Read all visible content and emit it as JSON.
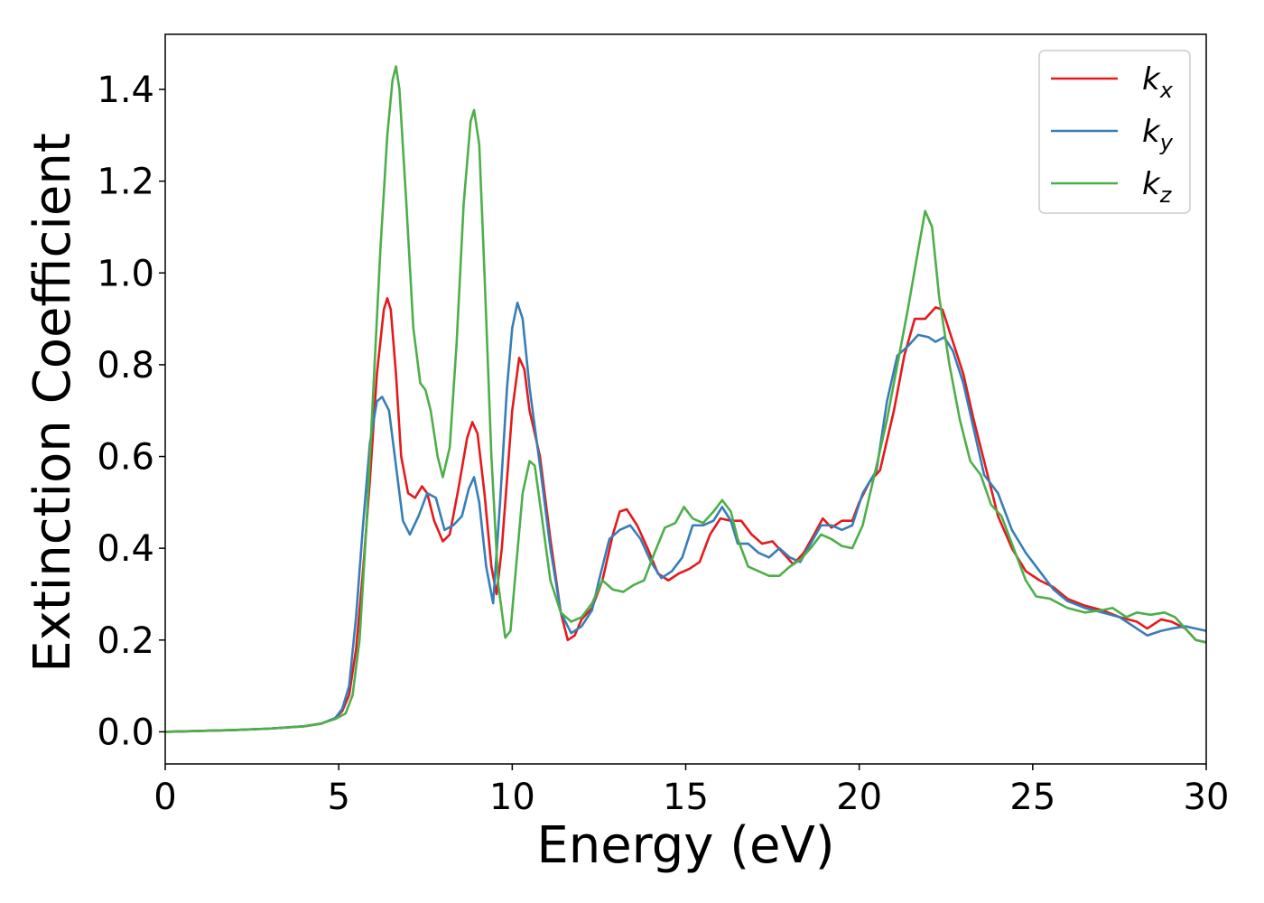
{
  "chart_data": {
    "type": "line",
    "xlabel": "Energy (eV)",
    "ylabel": "Extinction Coefficient",
    "xlim": [
      0,
      30
    ],
    "ylim": [
      -0.07,
      1.52
    ],
    "xticks": [
      0,
      5,
      10,
      15,
      20,
      25,
      30
    ],
    "yticks": [
      0.0,
      0.2,
      0.4,
      0.6,
      0.8,
      1.0,
      1.2,
      1.4
    ],
    "xtick_labels": [
      "0",
      "5",
      "10",
      "15",
      "20",
      "25",
      "30"
    ],
    "ytick_labels": [
      "0.0",
      "0.2",
      "0.4",
      "0.6",
      "0.8",
      "1.0",
      "1.2",
      "1.4"
    ],
    "grid": false,
    "legend_position": "top-right",
    "series": [
      {
        "name": "kx",
        "label_base": "k",
        "label_sub": "x",
        "color": "#e41a1c",
        "points": [
          [
            0,
            0.0
          ],
          [
            2,
            0.004
          ],
          [
            3,
            0.007
          ],
          [
            4,
            0.012
          ],
          [
            4.5,
            0.018
          ],
          [
            4.9,
            0.03
          ],
          [
            5.1,
            0.045
          ],
          [
            5.3,
            0.08
          ],
          [
            5.5,
            0.18
          ],
          [
            5.7,
            0.35
          ],
          [
            5.9,
            0.55
          ],
          [
            6.1,
            0.78
          ],
          [
            6.3,
            0.92
          ],
          [
            6.4,
            0.945
          ],
          [
            6.5,
            0.92
          ],
          [
            6.65,
            0.78
          ],
          [
            6.8,
            0.6
          ],
          [
            7.0,
            0.52
          ],
          [
            7.2,
            0.51
          ],
          [
            7.4,
            0.535
          ],
          [
            7.55,
            0.52
          ],
          [
            7.75,
            0.46
          ],
          [
            8.0,
            0.415
          ],
          [
            8.2,
            0.43
          ],
          [
            8.45,
            0.53
          ],
          [
            8.7,
            0.64
          ],
          [
            8.85,
            0.675
          ],
          [
            9.0,
            0.65
          ],
          [
            9.2,
            0.52
          ],
          [
            9.4,
            0.36
          ],
          [
            9.55,
            0.3
          ],
          [
            9.7,
            0.4
          ],
          [
            9.85,
            0.55
          ],
          [
            10.0,
            0.7
          ],
          [
            10.2,
            0.815
          ],
          [
            10.35,
            0.79
          ],
          [
            10.5,
            0.7
          ],
          [
            10.8,
            0.6
          ],
          [
            11.1,
            0.42
          ],
          [
            11.4,
            0.26
          ],
          [
            11.6,
            0.2
          ],
          [
            11.8,
            0.21
          ],
          [
            12.0,
            0.245
          ],
          [
            12.3,
            0.27
          ],
          [
            12.6,
            0.33
          ],
          [
            12.9,
            0.43
          ],
          [
            13.1,
            0.48
          ],
          [
            13.3,
            0.485
          ],
          [
            13.6,
            0.45
          ],
          [
            13.9,
            0.4
          ],
          [
            14.2,
            0.345
          ],
          [
            14.5,
            0.33
          ],
          [
            14.8,
            0.345
          ],
          [
            15.1,
            0.355
          ],
          [
            15.4,
            0.37
          ],
          [
            15.7,
            0.43
          ],
          [
            16.0,
            0.465
          ],
          [
            16.3,
            0.46
          ],
          [
            16.6,
            0.46
          ],
          [
            16.9,
            0.43
          ],
          [
            17.2,
            0.41
          ],
          [
            17.5,
            0.415
          ],
          [
            17.8,
            0.39
          ],
          [
            18.1,
            0.365
          ],
          [
            18.4,
            0.39
          ],
          [
            18.7,
            0.43
          ],
          [
            18.95,
            0.465
          ],
          [
            19.2,
            0.445
          ],
          [
            19.5,
            0.46
          ],
          [
            19.8,
            0.46
          ],
          [
            20.0,
            0.5
          ],
          [
            20.3,
            0.545
          ],
          [
            20.6,
            0.57
          ],
          [
            21.0,
            0.7
          ],
          [
            21.3,
            0.82
          ],
          [
            21.6,
            0.9
          ],
          [
            21.9,
            0.9
          ],
          [
            22.2,
            0.925
          ],
          [
            22.4,
            0.92
          ],
          [
            22.7,
            0.85
          ],
          [
            23.0,
            0.78
          ],
          [
            23.3,
            0.68
          ],
          [
            23.7,
            0.56
          ],
          [
            24.0,
            0.47
          ],
          [
            24.4,
            0.4
          ],
          [
            24.8,
            0.35
          ],
          [
            25.2,
            0.33
          ],
          [
            25.6,
            0.315
          ],
          [
            26.0,
            0.29
          ],
          [
            26.5,
            0.275
          ],
          [
            27.0,
            0.265
          ],
          [
            27.5,
            0.25
          ],
          [
            28.0,
            0.24
          ],
          [
            28.3,
            0.225
          ],
          [
            28.7,
            0.245
          ],
          [
            29.0,
            0.24
          ],
          [
            29.4,
            0.225
          ],
          [
            29.7,
            0.2
          ],
          [
            30.0,
            0.195
          ]
        ]
      },
      {
        "name": "ky",
        "label_base": "k",
        "label_sub": "y",
        "color": "#377eb8",
        "points": [
          [
            0,
            0.0
          ],
          [
            2,
            0.004
          ],
          [
            3,
            0.007
          ],
          [
            4,
            0.012
          ],
          [
            4.5,
            0.018
          ],
          [
            4.9,
            0.03
          ],
          [
            5.1,
            0.05
          ],
          [
            5.3,
            0.1
          ],
          [
            5.5,
            0.25
          ],
          [
            5.7,
            0.45
          ],
          [
            5.9,
            0.63
          ],
          [
            6.1,
            0.72
          ],
          [
            6.25,
            0.73
          ],
          [
            6.45,
            0.7
          ],
          [
            6.65,
            0.58
          ],
          [
            6.85,
            0.46
          ],
          [
            7.05,
            0.43
          ],
          [
            7.3,
            0.47
          ],
          [
            7.55,
            0.52
          ],
          [
            7.8,
            0.51
          ],
          [
            8.05,
            0.44
          ],
          [
            8.3,
            0.45
          ],
          [
            8.55,
            0.47
          ],
          [
            8.75,
            0.53
          ],
          [
            8.9,
            0.555
          ],
          [
            9.05,
            0.5
          ],
          [
            9.25,
            0.36
          ],
          [
            9.45,
            0.28
          ],
          [
            9.65,
            0.5
          ],
          [
            9.85,
            0.75
          ],
          [
            10.0,
            0.88
          ],
          [
            10.15,
            0.935
          ],
          [
            10.3,
            0.9
          ],
          [
            10.5,
            0.75
          ],
          [
            10.8,
            0.58
          ],
          [
            11.1,
            0.4
          ],
          [
            11.4,
            0.26
          ],
          [
            11.7,
            0.215
          ],
          [
            12.0,
            0.23
          ],
          [
            12.3,
            0.265
          ],
          [
            12.5,
            0.33
          ],
          [
            12.8,
            0.42
          ],
          [
            13.1,
            0.44
          ],
          [
            13.4,
            0.45
          ],
          [
            13.7,
            0.42
          ],
          [
            14.0,
            0.37
          ],
          [
            14.3,
            0.335
          ],
          [
            14.6,
            0.35
          ],
          [
            14.9,
            0.38
          ],
          [
            15.2,
            0.45
          ],
          [
            15.5,
            0.45
          ],
          [
            15.8,
            0.46
          ],
          [
            16.05,
            0.49
          ],
          [
            16.3,
            0.46
          ],
          [
            16.5,
            0.41
          ],
          [
            16.8,
            0.41
          ],
          [
            17.1,
            0.39
          ],
          [
            17.4,
            0.38
          ],
          [
            17.7,
            0.4
          ],
          [
            18.0,
            0.38
          ],
          [
            18.3,
            0.37
          ],
          [
            18.6,
            0.41
          ],
          [
            18.9,
            0.45
          ],
          [
            19.2,
            0.45
          ],
          [
            19.5,
            0.44
          ],
          [
            19.8,
            0.45
          ],
          [
            20.1,
            0.52
          ],
          [
            20.5,
            0.57
          ],
          [
            20.8,
            0.72
          ],
          [
            21.1,
            0.82
          ],
          [
            21.4,
            0.84
          ],
          [
            21.7,
            0.865
          ],
          [
            22.0,
            0.86
          ],
          [
            22.2,
            0.85
          ],
          [
            22.45,
            0.86
          ],
          [
            22.7,
            0.83
          ],
          [
            23.0,
            0.76
          ],
          [
            23.3,
            0.66
          ],
          [
            23.6,
            0.56
          ],
          [
            24.0,
            0.52
          ],
          [
            24.4,
            0.44
          ],
          [
            24.8,
            0.39
          ],
          [
            25.2,
            0.35
          ],
          [
            25.6,
            0.31
          ],
          [
            26.0,
            0.285
          ],
          [
            26.5,
            0.27
          ],
          [
            27.0,
            0.26
          ],
          [
            27.5,
            0.25
          ],
          [
            28.0,
            0.225
          ],
          [
            28.3,
            0.21
          ],
          [
            28.7,
            0.22
          ],
          [
            29.0,
            0.225
          ],
          [
            29.4,
            0.23
          ],
          [
            29.7,
            0.225
          ],
          [
            30.0,
            0.22
          ]
        ]
      },
      {
        "name": "kz",
        "label_base": "k",
        "label_sub": "z",
        "color": "#4daf4a",
        "points": [
          [
            0,
            0.0
          ],
          [
            2,
            0.004
          ],
          [
            3,
            0.007
          ],
          [
            4,
            0.012
          ],
          [
            4.5,
            0.018
          ],
          [
            4.9,
            0.028
          ],
          [
            5.2,
            0.04
          ],
          [
            5.4,
            0.08
          ],
          [
            5.6,
            0.2
          ],
          [
            5.8,
            0.45
          ],
          [
            6.0,
            0.75
          ],
          [
            6.2,
            1.05
          ],
          [
            6.4,
            1.3
          ],
          [
            6.55,
            1.42
          ],
          [
            6.65,
            1.45
          ],
          [
            6.75,
            1.4
          ],
          [
            6.95,
            1.15
          ],
          [
            7.15,
            0.88
          ],
          [
            7.35,
            0.76
          ],
          [
            7.5,
            0.745
          ],
          [
            7.65,
            0.7
          ],
          [
            7.85,
            0.6
          ],
          [
            8.0,
            0.555
          ],
          [
            8.2,
            0.62
          ],
          [
            8.4,
            0.85
          ],
          [
            8.6,
            1.15
          ],
          [
            8.8,
            1.33
          ],
          [
            8.9,
            1.355
          ],
          [
            9.05,
            1.28
          ],
          [
            9.2,
            1.0
          ],
          [
            9.4,
            0.6
          ],
          [
            9.6,
            0.32
          ],
          [
            9.8,
            0.205
          ],
          [
            9.95,
            0.22
          ],
          [
            10.1,
            0.35
          ],
          [
            10.3,
            0.52
          ],
          [
            10.5,
            0.59
          ],
          [
            10.65,
            0.58
          ],
          [
            10.85,
            0.47
          ],
          [
            11.1,
            0.33
          ],
          [
            11.4,
            0.26
          ],
          [
            11.7,
            0.24
          ],
          [
            12.0,
            0.25
          ],
          [
            12.3,
            0.28
          ],
          [
            12.6,
            0.33
          ],
          [
            12.9,
            0.31
          ],
          [
            13.2,
            0.305
          ],
          [
            13.5,
            0.32
          ],
          [
            13.8,
            0.33
          ],
          [
            14.1,
            0.39
          ],
          [
            14.4,
            0.445
          ],
          [
            14.7,
            0.455
          ],
          [
            14.95,
            0.49
          ],
          [
            15.2,
            0.465
          ],
          [
            15.5,
            0.455
          ],
          [
            15.8,
            0.48
          ],
          [
            16.05,
            0.505
          ],
          [
            16.3,
            0.48
          ],
          [
            16.5,
            0.42
          ],
          [
            16.8,
            0.36
          ],
          [
            17.1,
            0.35
          ],
          [
            17.4,
            0.34
          ],
          [
            17.7,
            0.34
          ],
          [
            18.0,
            0.36
          ],
          [
            18.3,
            0.375
          ],
          [
            18.6,
            0.4
          ],
          [
            18.9,
            0.43
          ],
          [
            19.2,
            0.42
          ],
          [
            19.5,
            0.405
          ],
          [
            19.8,
            0.4
          ],
          [
            20.1,
            0.45
          ],
          [
            20.5,
            0.58
          ],
          [
            20.8,
            0.68
          ],
          [
            21.1,
            0.8
          ],
          [
            21.4,
            0.92
          ],
          [
            21.7,
            1.05
          ],
          [
            21.9,
            1.135
          ],
          [
            22.1,
            1.1
          ],
          [
            22.3,
            0.95
          ],
          [
            22.6,
            0.8
          ],
          [
            22.9,
            0.68
          ],
          [
            23.2,
            0.59
          ],
          [
            23.5,
            0.56
          ],
          [
            23.8,
            0.495
          ],
          [
            24.1,
            0.47
          ],
          [
            24.5,
            0.39
          ],
          [
            24.8,
            0.33
          ],
          [
            25.1,
            0.295
          ],
          [
            25.5,
            0.29
          ],
          [
            26.0,
            0.27
          ],
          [
            26.5,
            0.26
          ],
          [
            27.0,
            0.265
          ],
          [
            27.3,
            0.27
          ],
          [
            27.7,
            0.25
          ],
          [
            28.0,
            0.26
          ],
          [
            28.4,
            0.255
          ],
          [
            28.8,
            0.26
          ],
          [
            29.1,
            0.25
          ],
          [
            29.4,
            0.225
          ],
          [
            29.7,
            0.2
          ],
          [
            30.0,
            0.195
          ]
        ]
      }
    ]
  }
}
